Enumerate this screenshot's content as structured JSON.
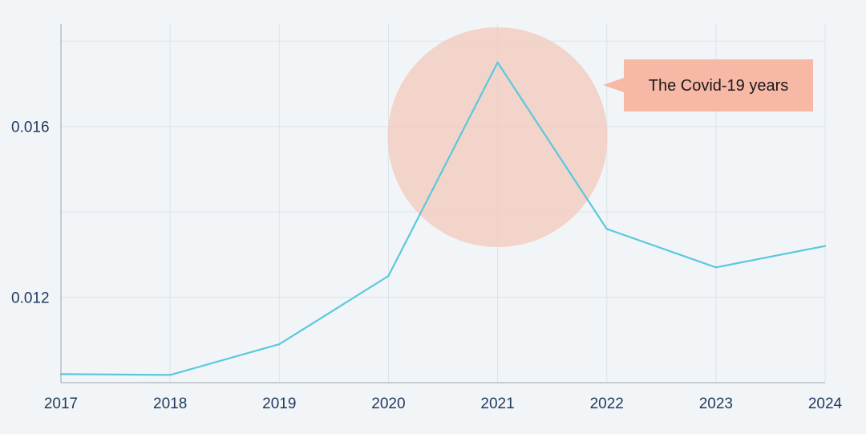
{
  "chart_data": {
    "type": "line",
    "title": "",
    "xlabel": "",
    "ylabel": "",
    "categories": [
      "2017",
      "2018",
      "2019",
      "2020",
      "2021",
      "2022",
      "2023",
      "2024"
    ],
    "series": [
      {
        "values": [
          0.0102,
          0.01018,
          0.0109,
          0.0125,
          0.0175,
          0.0136,
          0.0127,
          0.0132
        ]
      }
    ],
    "y_ticks": [
      {
        "value": 0.012,
        "label": "0.012"
      },
      {
        "value": 0.016,
        "label": "0.016"
      }
    ],
    "ylim": [
      0.01,
      0.0184
    ],
    "grid": true,
    "annotations": [
      {
        "text": "The Covid-19 years",
        "x": "2021",
        "highlight": "circle"
      }
    ],
    "colors": {
      "line": "#5bc8dd",
      "highlight": "#f2cbbf",
      "callout": "#f7b8a6",
      "grid": "#dde3e8",
      "axis": "#9aa4ae",
      "tick_text": "#1e3a5f",
      "background": "#f2f5f7"
    }
  }
}
